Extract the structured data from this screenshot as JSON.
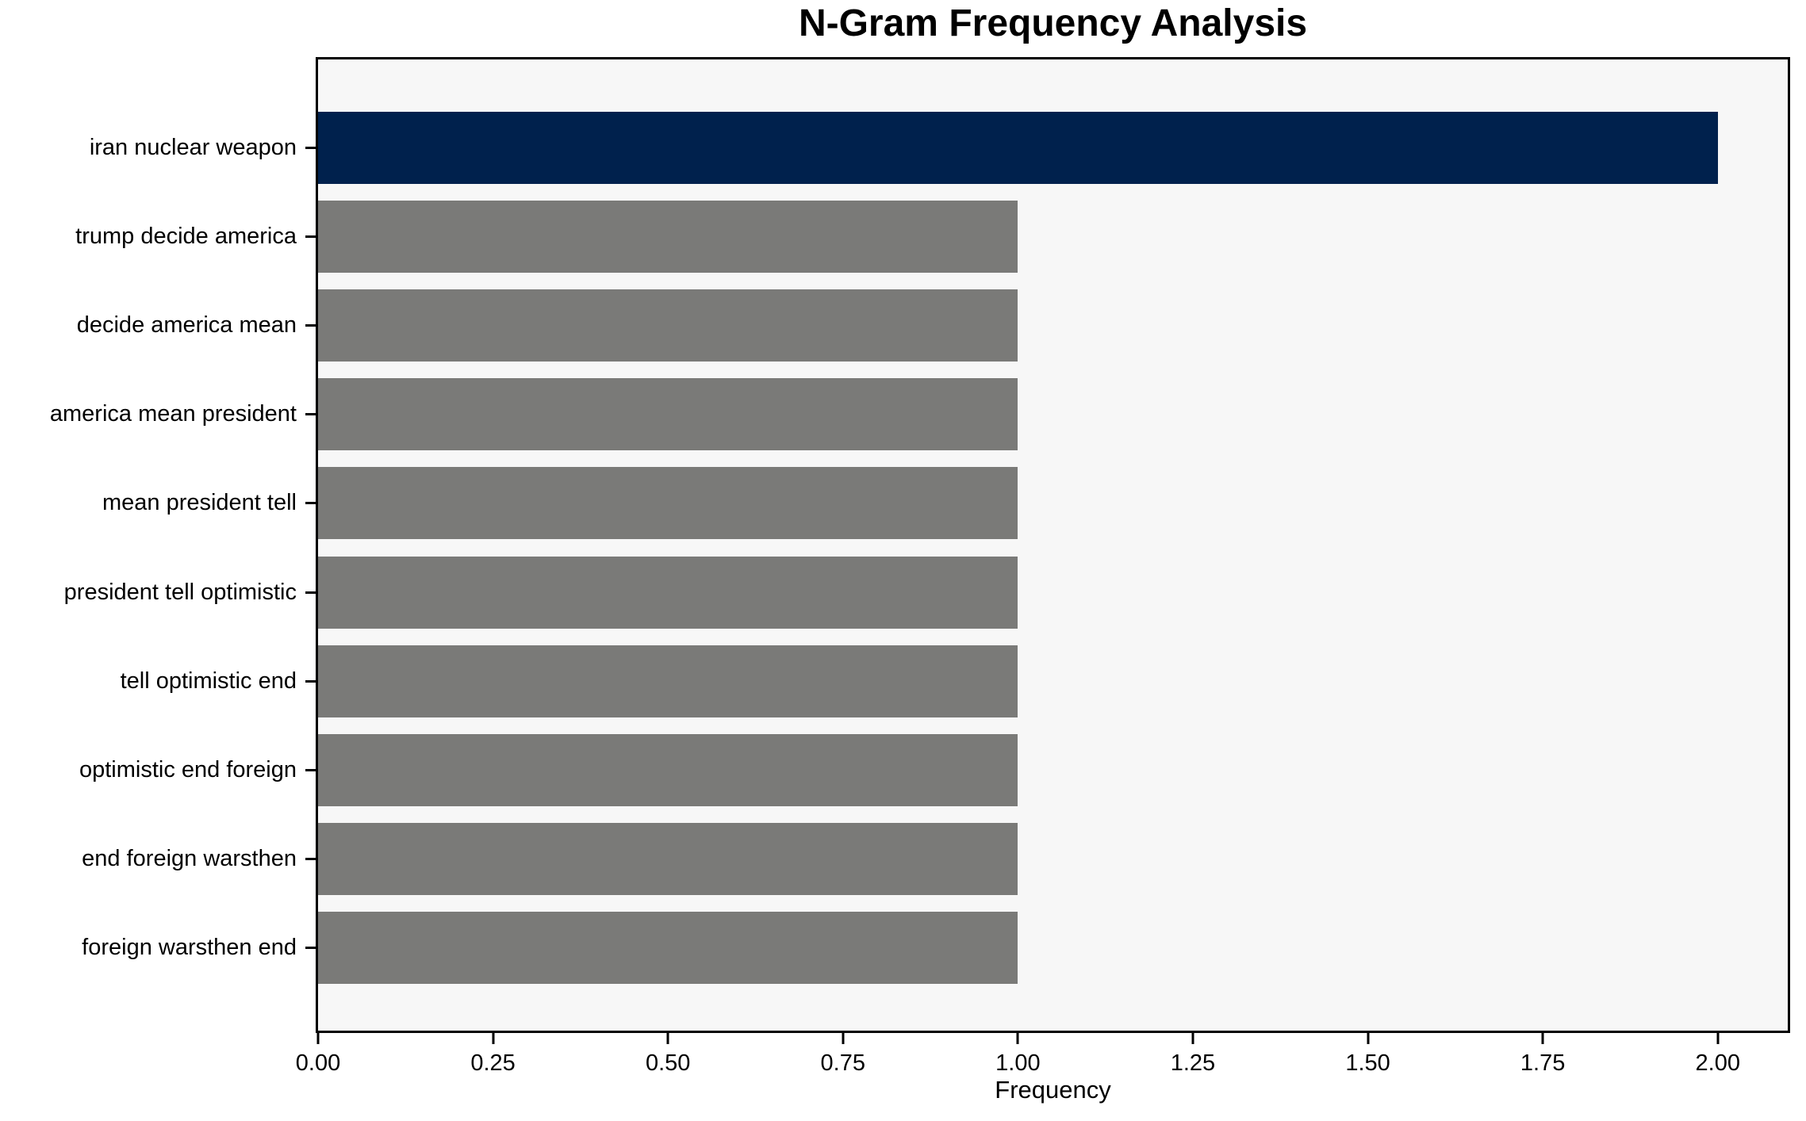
{
  "chart_data": {
    "type": "bar",
    "orientation": "horizontal",
    "title": "N-Gram Frequency Analysis",
    "xlabel": "Frequency",
    "ylabel": "",
    "categories": [
      "iran nuclear weapon",
      "trump decide america",
      "decide america mean",
      "america mean president",
      "mean president tell",
      "president tell optimistic",
      "tell optimistic end",
      "optimistic end foreign",
      "end foreign warsthen",
      "foreign warsthen end"
    ],
    "values": [
      2,
      1,
      1,
      1,
      1,
      1,
      1,
      1,
      1,
      1
    ],
    "bar_colors": [
      "#00214d",
      "#7a7a78",
      "#7a7a78",
      "#7a7a78",
      "#7a7a78",
      "#7a7a78",
      "#7a7a78",
      "#7a7a78",
      "#7a7a78",
      "#7a7a78"
    ],
    "xticks": [
      0,
      0.25,
      0.5,
      0.75,
      1.0,
      1.25,
      1.5,
      1.75,
      2.0
    ],
    "xtick_labels": [
      "0.00",
      "0.25",
      "0.50",
      "0.75",
      "1.00",
      "1.25",
      "1.50",
      "1.75",
      "2.00"
    ],
    "xlim": [
      0,
      2.1
    ],
    "grid": false,
    "legend": null,
    "colors": {
      "highlight_bar": "#00214d",
      "default_bar": "#7a7a78",
      "plot_background": "#f7f7f7",
      "figure_background": "#ffffff",
      "axis": "#000000"
    }
  }
}
